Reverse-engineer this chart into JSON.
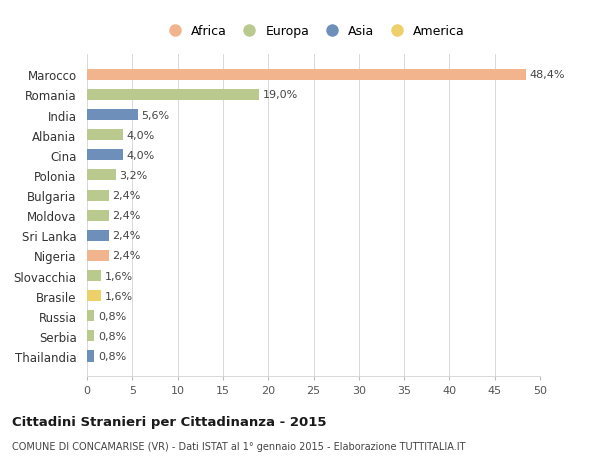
{
  "countries": [
    "Marocco",
    "Romania",
    "India",
    "Albania",
    "Cina",
    "Polonia",
    "Bulgaria",
    "Moldova",
    "Sri Lanka",
    "Nigeria",
    "Slovacchia",
    "Brasile",
    "Russia",
    "Serbia",
    "Thailandia"
  ],
  "values": [
    48.4,
    19.0,
    5.6,
    4.0,
    4.0,
    3.2,
    2.4,
    2.4,
    2.4,
    2.4,
    1.6,
    1.6,
    0.8,
    0.8,
    0.8
  ],
  "labels": [
    "48,4%",
    "19,0%",
    "5,6%",
    "4,0%",
    "4,0%",
    "3,2%",
    "2,4%",
    "2,4%",
    "2,4%",
    "2,4%",
    "1,6%",
    "1,6%",
    "0,8%",
    "0,8%",
    "0,8%"
  ],
  "continents": [
    "Africa",
    "Europa",
    "Asia",
    "Europa",
    "Asia",
    "Europa",
    "Europa",
    "Europa",
    "Asia",
    "Africa",
    "Europa",
    "America",
    "Europa",
    "Europa",
    "Asia"
  ],
  "colors": {
    "Africa": "#F2B48C",
    "Europa": "#BAC98E",
    "Asia": "#6E8FBA",
    "America": "#EDD06A"
  },
  "title": "Cittadini Stranieri per Cittadinanza - 2015",
  "subtitle": "COMUNE DI CONCAMARISE (VR) - Dati ISTAT al 1° gennaio 2015 - Elaborazione TUTTITALIA.IT",
  "xlim": [
    0,
    50
  ],
  "xticks": [
    0,
    5,
    10,
    15,
    20,
    25,
    30,
    35,
    40,
    45,
    50
  ],
  "grid_color": "#d8d8d8",
  "background_color": "#ffffff",
  "bar_height": 0.55,
  "legend_order": [
    "Africa",
    "Europa",
    "Asia",
    "America"
  ]
}
